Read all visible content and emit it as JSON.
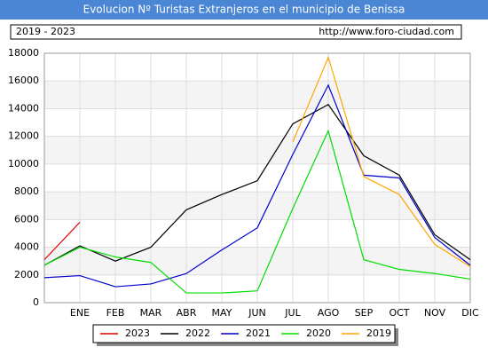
{
  "chart_data": {
    "type": "line",
    "title": "Evolucion Nº Turistas Extranjeros en el municipio de Benissa",
    "subtitle": "2019 - 2023",
    "source": "http://www.foro-ciudad.com",
    "categories": [
      null,
      "ENE",
      "FEB",
      "MAR",
      "ABR",
      "MAY",
      "JUN",
      "JUL",
      "AGO",
      "SEP",
      "OCT",
      "NOV",
      "DIC"
    ],
    "series": [
      {
        "name": "2023",
        "color": "#e00000",
        "values": [
          3100,
          5800,
          null,
          null,
          null,
          null,
          null,
          null,
          null,
          null,
          null,
          null,
          null
        ]
      },
      {
        "name": "2022",
        "color": "#000000",
        "values": [
          2700,
          4100,
          3000,
          4000,
          6700,
          7800,
          8800,
          12900,
          14300,
          10600,
          9200,
          4900,
          3100
        ]
      },
      {
        "name": "2021",
        "color": "#0000cc",
        "values": [
          1800,
          1950,
          1150,
          1350,
          2100,
          3800,
          5400,
          10700,
          15700,
          9200,
          9000,
          4700,
          2700
        ]
      },
      {
        "name": "2020",
        "color": "#00dd00",
        "values": [
          2700,
          4000,
          3300,
          2900,
          700,
          700,
          850,
          6800,
          12400,
          3100,
          2400,
          2100,
          1700
        ]
      },
      {
        "name": "2019",
        "color": "#ffa500",
        "values": [
          null,
          null,
          null,
          null,
          null,
          null,
          null,
          11600,
          17700,
          9100,
          7800,
          4200,
          2600
        ]
      }
    ],
    "ylim": [
      0,
      18000
    ],
    "yticks": [
      0,
      2000,
      4000,
      6000,
      8000,
      10000,
      12000,
      14000,
      16000,
      18000
    ],
    "grid": true,
    "legend": "bottom"
  }
}
